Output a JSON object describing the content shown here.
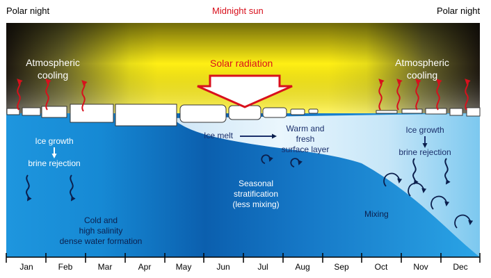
{
  "labels": {
    "polar_night_left": "Polar night",
    "midnight_sun": "Midnight sun",
    "polar_night_right": "Polar night",
    "atm_cooling_left": [
      "Atmospheric",
      "cooling"
    ],
    "solar_radiation": "Solar radiation",
    "atm_cooling_right": [
      "Atmospheric",
      "cooling"
    ],
    "ice_growth_left": "Ice growth",
    "brine_rejection_left": "brine rejection",
    "ice_melt": "Ice melt",
    "warm_fresh": [
      "Warm and",
      "fresh",
      "surface layer"
    ],
    "ice_growth_right": "Ice growth",
    "brine_rejection_right": "brine rejection",
    "seasonal": [
      "Seasonal",
      "stratification",
      "(less mixing)"
    ],
    "mixing": "Mixing",
    "cold_dense": [
      "Cold and",
      "high salinity",
      "dense water formation"
    ]
  },
  "months": [
    "Jan",
    "Feb",
    "Mar",
    "Apr",
    "May",
    "Jun",
    "Jul",
    "Aug",
    "Sep",
    "Oct",
    "Nov",
    "Dec"
  ],
  "colors": {
    "sky_dark": "#1e1810",
    "sky_yellow": "#ffef14",
    "sea_deep": "#0b5fae",
    "sea_mid": "#1e92dc",
    "sea_light": "#dff1fc",
    "heat_arrow": "#d8101c",
    "text_red": "#d8101c"
  },
  "icons": [
    "wavy-heat-arrow",
    "solar-down-arrow",
    "wavy-brine-arrow",
    "eddy-arrow",
    "right-arrow",
    "down-arrow"
  ]
}
